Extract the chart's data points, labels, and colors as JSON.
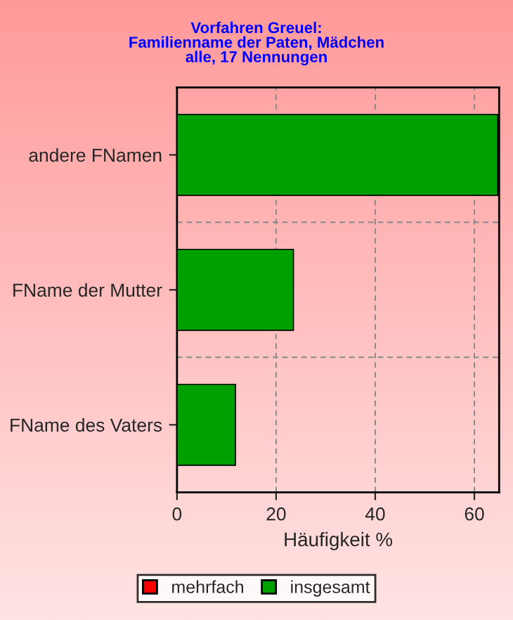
{
  "chart_data": {
    "type": "bar",
    "orientation": "horizontal",
    "title": "Vorfahren Greuel:\nFamilienname der Paten, Mädchen\nalle, 17 Nennungen",
    "xlabel": "Häufigkeit %",
    "categories": [
      "andere FNamen",
      "FName der Mutter",
      "FName des Vaters"
    ],
    "series": [
      {
        "name": "mehrfach",
        "color": "#ff0000",
        "values": [
          null,
          null,
          null
        ]
      },
      {
        "name": "insgesamt",
        "color": "#00a000",
        "values": [
          64.7,
          23.5,
          11.8
        ]
      }
    ],
    "xlim": [
      0,
      65
    ],
    "xticks": [
      0,
      20,
      40,
      60
    ],
    "grid": true,
    "legend": "bottom"
  }
}
